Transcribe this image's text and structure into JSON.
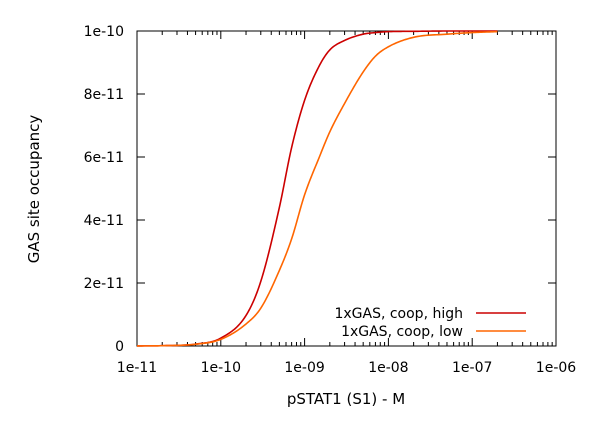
{
  "chart_data": {
    "type": "line",
    "xlabel": "pSTAT1 (S1) - M",
    "ylabel": "GAS site occupancy",
    "x_scale": "log",
    "xlim": [
      1e-11,
      1e-06
    ],
    "ylim": [
      0,
      1e-10
    ],
    "x_tick_labels": [
      "1e-11",
      "1e-10",
      "1e-09",
      "1e-08",
      "1e-07",
      "1e-06"
    ],
    "y_tick_labels": [
      "0",
      "2e-11",
      "4e-11",
      "6e-11",
      "8e-11",
      "1e-10"
    ],
    "legend_position": "bottom-right",
    "grid": false,
    "series": [
      {
        "name": "1xGAS, coop, high",
        "color": "#cc0000",
        "x": [
          1e-11,
          2e-11,
          5e-11,
          1e-10,
          2e-10,
          3e-10,
          5e-10,
          7e-10,
          1e-09,
          1.5e-09,
          2e-09,
          3e-09,
          5e-09,
          7e-09,
          1e-08,
          2e-08,
          5e-08,
          1e-07,
          2e-07
        ],
        "y": [
          2.5e-14,
          1e-13,
          6e-13,
          2.5e-12,
          9.7e-12,
          2.05e-11,
          4.4e-11,
          6.3e-11,
          7.8e-11,
          8.9e-11,
          9.4e-11,
          9.7e-11,
          9.9e-11,
          9.95e-11,
          9.98e-11,
          9.99e-11,
          1e-10,
          1e-10,
          1e-10
        ]
      },
      {
        "name": "1xGAS, coop, low",
        "color": "#ff6600",
        "x": [
          1e-11,
          2e-11,
          5e-11,
          1e-10,
          2e-10,
          3e-10,
          5e-10,
          7e-10,
          1e-09,
          1.5e-09,
          2e-09,
          3e-09,
          5e-09,
          7e-09,
          1e-08,
          2e-08,
          5e-08,
          1e-07,
          2e-07
        ],
        "y": [
          2.4e-14,
          9.5e-14,
          5.5e-13,
          2.1e-12,
          7e-12,
          1.2e-11,
          2.4e-11,
          3.4e-11,
          4.8e-11,
          6e-11,
          6.8e-11,
          7.7e-11,
          8.7e-11,
          9.2e-11,
          9.5e-11,
          9.8e-11,
          9.9e-11,
          9.95e-11,
          9.98e-11
        ]
      }
    ]
  }
}
